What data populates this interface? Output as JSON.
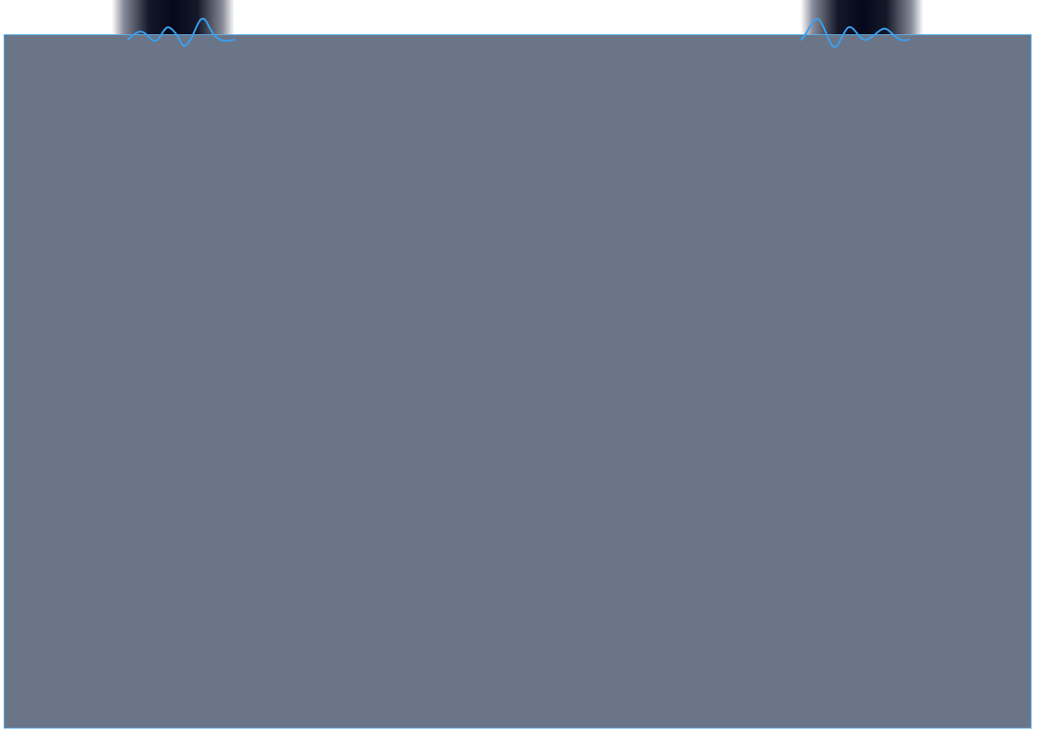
{
  "page": {
    "background_color": "#ffffff",
    "panel_color": "#6b7588",
    "panel_border_color": "#5aaeea",
    "wave_color": "#3aa0f0"
  },
  "decorations": {
    "left_tab_icon": "waveform-icon",
    "right_tab_icon": "waveform-icon"
  }
}
